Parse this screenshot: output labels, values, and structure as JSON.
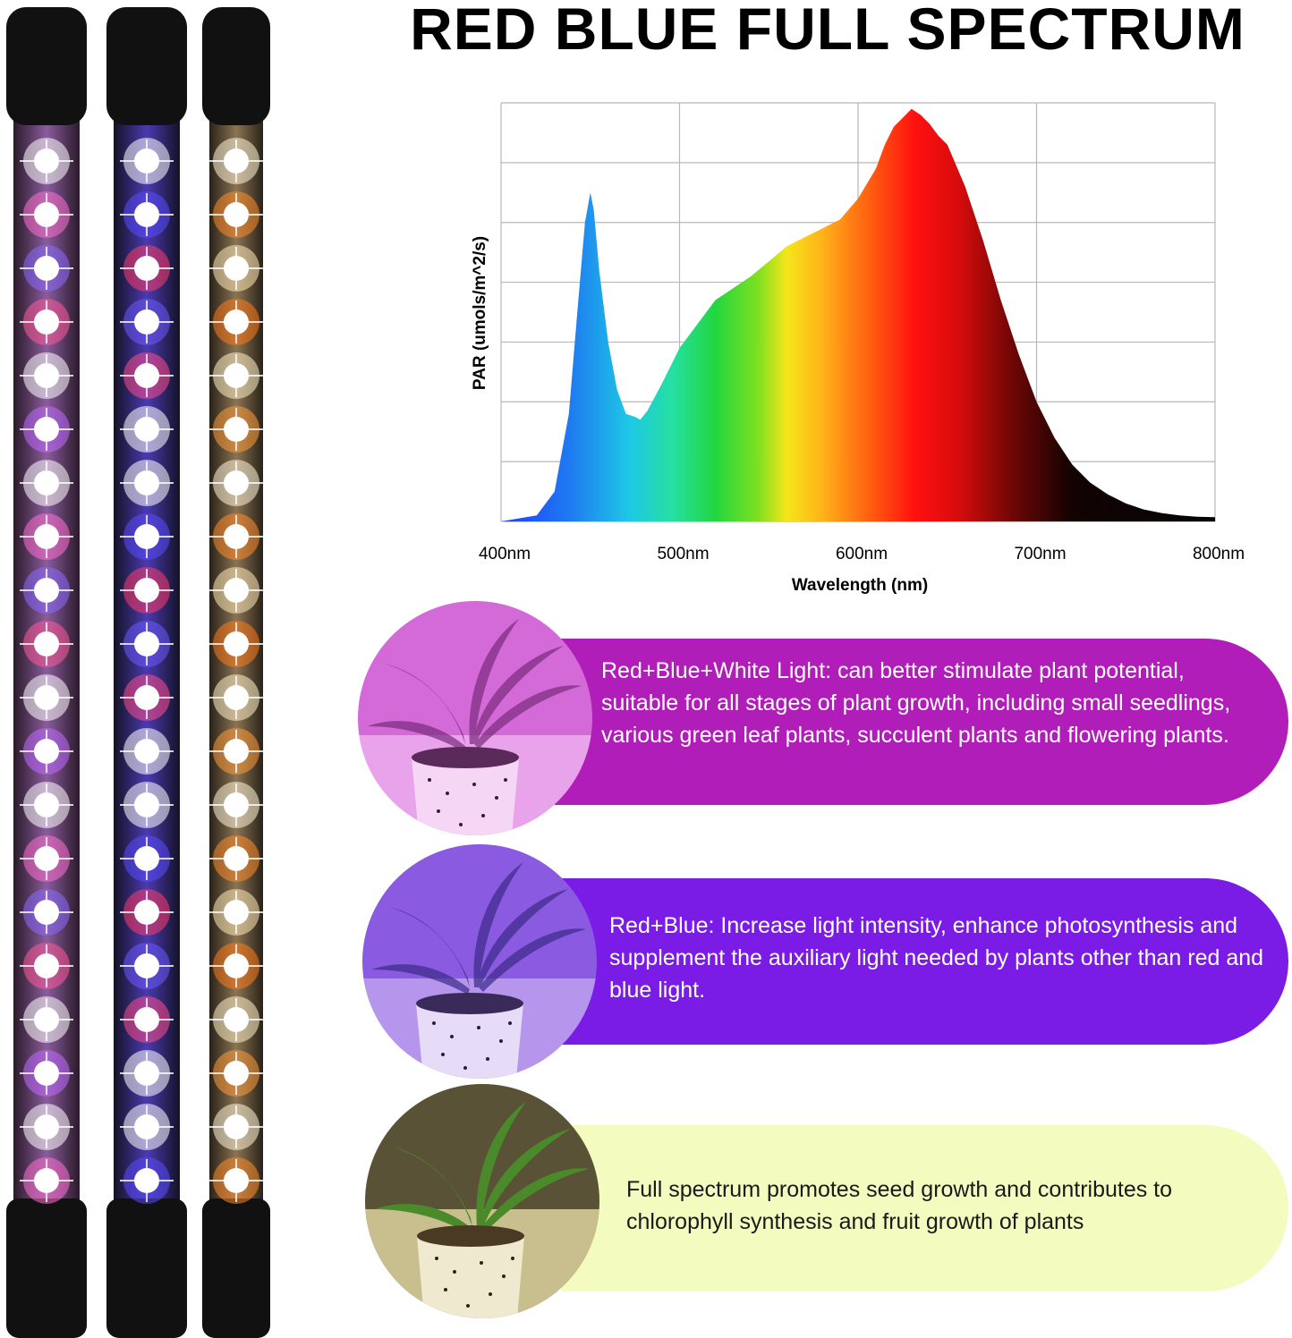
{
  "header": {
    "title": "RED BLUE FULL SPECTRUM"
  },
  "chart_data": {
    "type": "area",
    "title": "",
    "xlabel": "Wavelength (nm)",
    "ylabel": "PAR (umols/m^2/s)",
    "x_tick_labels": [
      "400nm",
      "500nm",
      "600nm",
      "700nm",
      "800nm"
    ],
    "xlim": [
      400,
      800
    ],
    "ylim": [
      0,
      7
    ],
    "grid": true,
    "series": [
      {
        "x": [
          400,
          420,
          430,
          438,
          443,
          447,
          450,
          452,
          455,
          460,
          465,
          470,
          475,
          478,
          482,
          490,
          500,
          510,
          520,
          530,
          540,
          550,
          560,
          570,
          580,
          590,
          600,
          610,
          615,
          620,
          625,
          630,
          635,
          640,
          645,
          650,
          660,
          670,
          680,
          690,
          700,
          710,
          720,
          730,
          740,
          750,
          760,
          770,
          780,
          790,
          800
        ],
        "y": [
          0.0,
          0.1,
          0.5,
          1.8,
          3.6,
          5.0,
          5.5,
          5.2,
          4.2,
          3.0,
          2.2,
          1.8,
          1.75,
          1.7,
          1.85,
          2.3,
          2.9,
          3.3,
          3.7,
          3.9,
          4.1,
          4.35,
          4.6,
          4.75,
          4.9,
          5.05,
          5.4,
          5.9,
          6.3,
          6.6,
          6.75,
          6.9,
          6.8,
          6.65,
          6.45,
          6.3,
          5.6,
          4.7,
          3.7,
          2.8,
          2.0,
          1.4,
          0.95,
          0.65,
          0.45,
          0.3,
          0.2,
          0.14,
          0.1,
          0.08,
          0.07
        ]
      }
    ]
  },
  "cards": [
    {
      "text": "Red+Blue+White Light: can better stimulate plant potential, suitable for all stages of plant growth, including small seedlings, various green leaf plants, succulent plants and flowering plants.",
      "pill_color": "#b01db8",
      "text_color": "#ffffff"
    },
    {
      "text": "Red+Blue: Increase light intensity, enhance photosynthesis and supplement the auxiliary light needed by plants other than red and blue light.",
      "pill_color": "#7a1be6",
      "text_color": "#ffffff"
    },
    {
      "text": "Full spectrum promotes seed growth and contributes to chlorophyll synthesis and fruit growth of plants",
      "pill_color": "#f4fbbf",
      "text_color": "#1a1a1a"
    }
  ],
  "lamps": [
    {
      "type": "red-blue-white"
    },
    {
      "type": "red-blue"
    },
    {
      "type": "full-spectrum"
    }
  ]
}
